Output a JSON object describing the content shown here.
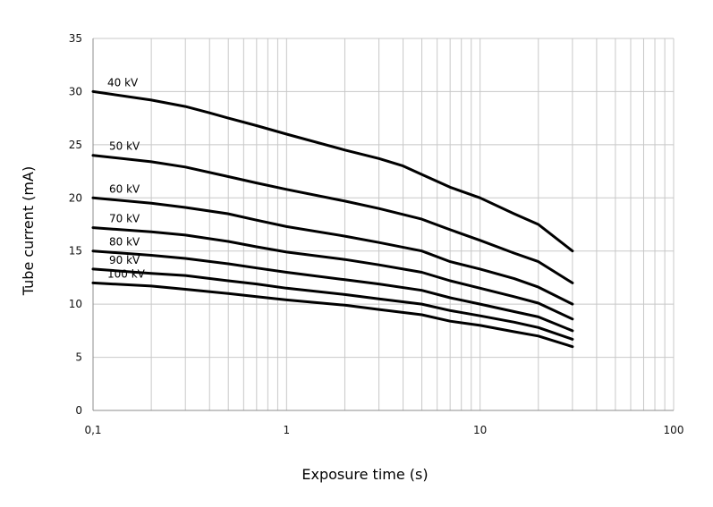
{
  "chart_data": {
    "type": "line",
    "title": "",
    "xlabel": "Exposure time (s)",
    "ylabel": "Tube current (mA)",
    "x_scale": "log",
    "xlim": [
      0.1,
      100
    ],
    "ylim": [
      0,
      35
    ],
    "x_ticks": [
      0.1,
      1,
      10,
      100
    ],
    "x_tick_labels": [
      "0,1",
      "1",
      "10",
      "100"
    ],
    "y_ticks": [
      0,
      5,
      10,
      15,
      20,
      25,
      30,
      35
    ],
    "y_tick_labels": [
      "0",
      "5",
      "10",
      "15",
      "20",
      "25",
      "30",
      "35"
    ],
    "grid": true,
    "legend": "none",
    "line_color": "#000000",
    "series": [
      {
        "name": "40 kV",
        "x": [
          0.1,
          0.2,
          0.3,
          0.4,
          0.5,
          0.7,
          1,
          2,
          3,
          4,
          5,
          7,
          10,
          15,
          20,
          30
        ],
        "y": [
          30,
          29.2,
          28.6,
          28.0,
          27.5,
          26.8,
          26,
          24.5,
          23.7,
          23.0,
          22.2,
          21.0,
          20,
          18.5,
          17.5,
          15
        ]
      },
      {
        "name": "50 kV",
        "x": [
          0.1,
          0.2,
          0.3,
          0.5,
          0.7,
          1,
          2,
          3,
          5,
          7,
          10,
          15,
          20,
          30
        ],
        "y": [
          24,
          23.4,
          22.9,
          22.0,
          21.4,
          20.8,
          19.7,
          19.0,
          18.0,
          17.0,
          16.0,
          14.8,
          14.0,
          12
        ]
      },
      {
        "name": "60 kV",
        "x": [
          0.1,
          0.2,
          0.3,
          0.5,
          0.7,
          1,
          2,
          3,
          5,
          7,
          10,
          15,
          20,
          30
        ],
        "y": [
          20,
          19.5,
          19.1,
          18.5,
          17.9,
          17.3,
          16.4,
          15.8,
          15.0,
          14.0,
          13.3,
          12.4,
          11.6,
          10
        ]
      },
      {
        "name": "70 kV",
        "x": [
          0.1,
          0.2,
          0.3,
          0.5,
          0.7,
          1,
          2,
          3,
          5,
          7,
          10,
          15,
          20,
          30
        ],
        "y": [
          17.2,
          16.8,
          16.5,
          15.9,
          15.4,
          14.9,
          14.2,
          13.7,
          13.0,
          12.2,
          11.5,
          10.7,
          10.1,
          8.6
        ]
      },
      {
        "name": "80 kV",
        "x": [
          0.1,
          0.2,
          0.3,
          0.5,
          0.7,
          1,
          2,
          3,
          5,
          7,
          10,
          15,
          20,
          30
        ],
        "y": [
          15,
          14.6,
          14.3,
          13.8,
          13.4,
          13.0,
          12.3,
          11.9,
          11.3,
          10.6,
          10.0,
          9.3,
          8.8,
          7.5
        ]
      },
      {
        "name": "90 kV",
        "x": [
          0.1,
          0.2,
          0.3,
          0.5,
          0.7,
          1,
          2,
          3,
          5,
          7,
          10,
          15,
          20,
          30
        ],
        "y": [
          13.3,
          12.9,
          12.7,
          12.2,
          11.9,
          11.5,
          10.9,
          10.5,
          10.0,
          9.4,
          8.9,
          8.3,
          7.8,
          6.7
        ]
      },
      {
        "name": "100 kV",
        "x": [
          0.1,
          0.2,
          0.3,
          0.5,
          0.7,
          1,
          2,
          3,
          5,
          7,
          10,
          15,
          20,
          30
        ],
        "y": [
          12,
          11.7,
          11.4,
          11.0,
          10.7,
          10.4,
          9.9,
          9.5,
          9.0,
          8.4,
          8.0,
          7.4,
          7.0,
          6
        ]
      }
    ]
  }
}
